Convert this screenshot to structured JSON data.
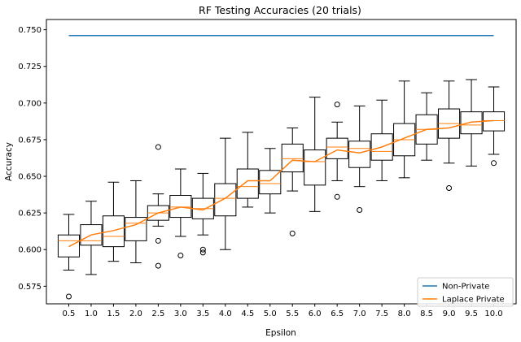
{
  "chart_data": {
    "type": "box",
    "title": "RF Testing Accuracies (20 trials)",
    "xlabel": "Epsilon",
    "ylabel": "Accuracy",
    "ylim": [
      0.563,
      0.757
    ],
    "yticks": [
      0.575,
      0.6,
      0.625,
      0.65,
      0.675,
      0.7,
      0.725,
      0.75
    ],
    "ytick_labels": [
      "0.575",
      "0.600",
      "0.625",
      "0.650",
      "0.675",
      "0.700",
      "0.725",
      "0.750"
    ],
    "categories": [
      "0.5",
      "1.0",
      "1.5",
      "2.0",
      "2.5",
      "3.0",
      "3.5",
      "4.0",
      "4.5",
      "5.0",
      "5.5",
      "6.0",
      "6.5",
      "7.0",
      "7.5",
      "8.0",
      "8.5",
      "9.0",
      "9.5",
      "10.0"
    ],
    "boxes": [
      {
        "whislo": 0.586,
        "q1": 0.595,
        "med": 0.606,
        "q3": 0.61,
        "whishi": 0.624,
        "fliers": [
          0.568
        ]
      },
      {
        "whislo": 0.583,
        "q1": 0.603,
        "med": 0.606,
        "q3": 0.617,
        "whishi": 0.633,
        "fliers": []
      },
      {
        "whislo": 0.592,
        "q1": 0.602,
        "med": 0.609,
        "q3": 0.623,
        "whishi": 0.646,
        "fliers": []
      },
      {
        "whislo": 0.591,
        "q1": 0.606,
        "med": 0.618,
        "q3": 0.622,
        "whishi": 0.647,
        "fliers": []
      },
      {
        "whislo": 0.616,
        "q1": 0.62,
        "med": 0.625,
        "q3": 0.63,
        "whishi": 0.638,
        "fliers": [
          0.67,
          0.606,
          0.589
        ]
      },
      {
        "whislo": 0.609,
        "q1": 0.622,
        "med": 0.629,
        "q3": 0.637,
        "whishi": 0.655,
        "fliers": [
          0.596
        ]
      },
      {
        "whislo": 0.61,
        "q1": 0.621,
        "med": 0.628,
        "q3": 0.635,
        "whishi": 0.652,
        "fliers": [
          0.6,
          0.598
        ]
      },
      {
        "whislo": 0.6,
        "q1": 0.623,
        "med": 0.635,
        "q3": 0.645,
        "whishi": 0.676,
        "fliers": []
      },
      {
        "whislo": 0.629,
        "q1": 0.635,
        "med": 0.643,
        "q3": 0.655,
        "whishi": 0.68,
        "fliers": []
      },
      {
        "whislo": 0.625,
        "q1": 0.638,
        "med": 0.645,
        "q3": 0.654,
        "whishi": 0.669,
        "fliers": []
      },
      {
        "whislo": 0.64,
        "q1": 0.653,
        "med": 0.662,
        "q3": 0.672,
        "whishi": 0.683,
        "fliers": [
          0.611
        ]
      },
      {
        "whislo": 0.626,
        "q1": 0.644,
        "med": 0.66,
        "q3": 0.668,
        "whishi": 0.704,
        "fliers": []
      },
      {
        "whislo": 0.647,
        "q1": 0.662,
        "med": 0.67,
        "q3": 0.676,
        "whishi": 0.687,
        "fliers": [
          0.699,
          0.636
        ]
      },
      {
        "whislo": 0.643,
        "q1": 0.656,
        "med": 0.669,
        "q3": 0.674,
        "whishi": 0.698,
        "fliers": [
          0.627
        ]
      },
      {
        "whislo": 0.647,
        "q1": 0.661,
        "med": 0.667,
        "q3": 0.679,
        "whishi": 0.702,
        "fliers": []
      },
      {
        "whislo": 0.649,
        "q1": 0.664,
        "med": 0.675,
        "q3": 0.686,
        "whishi": 0.715,
        "fliers": []
      },
      {
        "whislo": 0.661,
        "q1": 0.672,
        "med": 0.682,
        "q3": 0.692,
        "whishi": 0.707,
        "fliers": []
      },
      {
        "whislo": 0.659,
        "q1": 0.676,
        "med": 0.686,
        "q3": 0.696,
        "whishi": 0.715,
        "fliers": [
          0.642
        ]
      },
      {
        "whislo": 0.657,
        "q1": 0.679,
        "med": 0.685,
        "q3": 0.694,
        "whishi": 0.716,
        "fliers": []
      },
      {
        "whislo": 0.665,
        "q1": 0.681,
        "med": 0.688,
        "q3": 0.694,
        "whishi": 0.711,
        "fliers": [
          0.659
        ]
      }
    ],
    "series": [
      {
        "name": "Non-Private",
        "color": "#1f77b4",
        "values": [
          0.746,
          0.746,
          0.746,
          0.746,
          0.746,
          0.746,
          0.746,
          0.746,
          0.746,
          0.746,
          0.746,
          0.746,
          0.746,
          0.746,
          0.746,
          0.746,
          0.746,
          0.746,
          0.746,
          0.746
        ]
      },
      {
        "name": "Laplace Private",
        "color": "#ff7f0e",
        "values": [
          0.602,
          0.61,
          0.613,
          0.617,
          0.625,
          0.629,
          0.627,
          0.635,
          0.647,
          0.647,
          0.661,
          0.66,
          0.668,
          0.666,
          0.67,
          0.676,
          0.682,
          0.683,
          0.687,
          0.688
        ]
      }
    ],
    "box_color": "#000000",
    "median_color": "#ff7f0e",
    "legend_position": "lower-right"
  }
}
